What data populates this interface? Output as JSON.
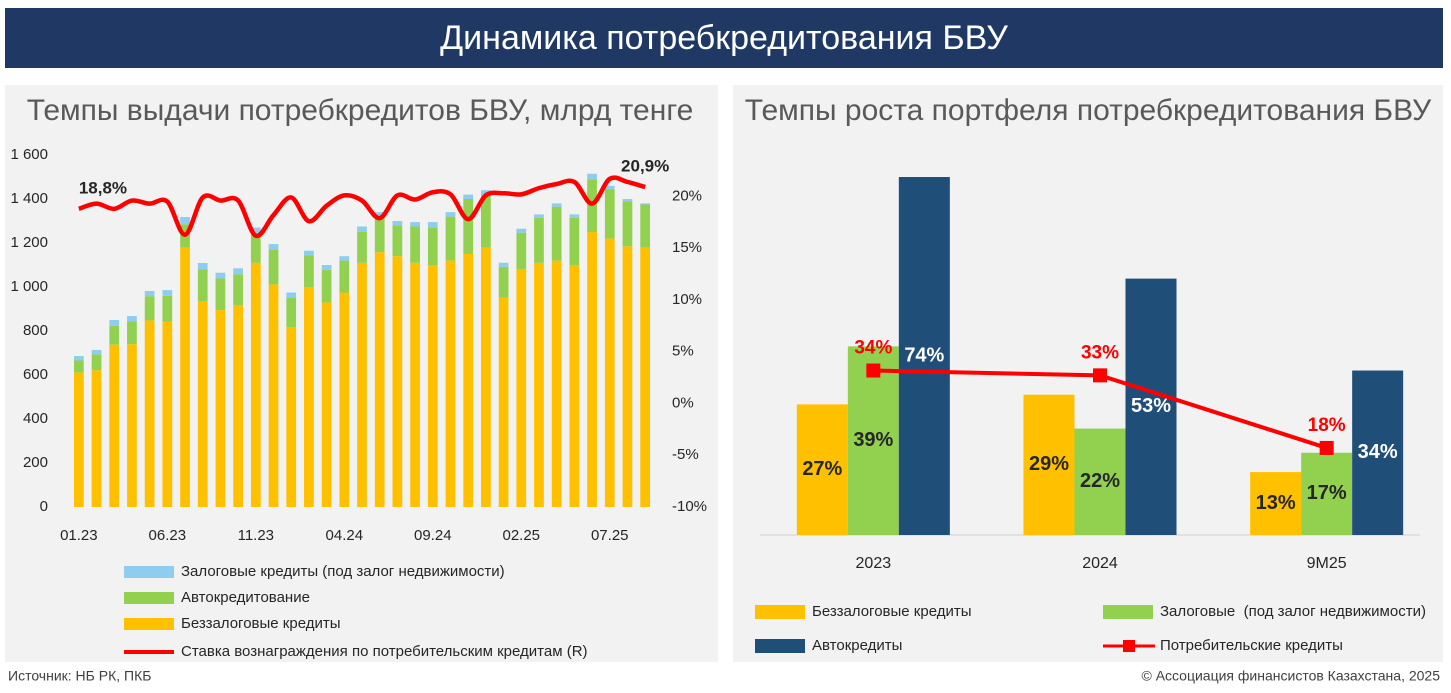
{
  "title": "Динамика потребкредитования БВУ",
  "source": "Источник: НБ РК, ПКБ",
  "copyright": "© Ассоциация финансистов Казахстана, 2025",
  "chart_data": [
    {
      "type": "bar",
      "stacked": true,
      "title": "Темпы выдачи потребкредитов БВУ, млрд тенге",
      "categories": [
        "01.23",
        null,
        null,
        null,
        null,
        "06.23",
        null,
        null,
        null,
        null,
        "11.23",
        null,
        null,
        null,
        null,
        "04.24",
        null,
        null,
        null,
        null,
        "09.24",
        null,
        null,
        null,
        null,
        "02.25",
        null,
        null,
        null,
        null,
        "07.25",
        null,
        null
      ],
      "series": [
        {
          "name": "Беззалоговые кредиты",
          "color": "#ffc000",
          "values": [
            612,
            622,
            738,
            740,
            848,
            842,
            1180,
            935,
            895,
            918,
            1110,
            1012,
            818,
            1000,
            930,
            975,
            1110,
            1158,
            1140,
            1110,
            1100,
            1120,
            1150,
            1180,
            952,
            1082,
            1110,
            1120,
            1100,
            1250,
            1220,
            1185,
            1180
          ]
        },
        {
          "name": "Автокредитование",
          "color": "#92d050",
          "values": [
            54,
            72,
            86,
            103,
            110,
            118,
            105,
            146,
            144,
            140,
            135,
            158,
            132,
            143,
            147,
            145,
            140,
            160,
            140,
            165,
            170,
            200,
            250,
            240,
            140,
            165,
            205,
            245,
            215,
            240,
            225,
            205,
            195
          ]
        },
        {
          "name": "Залоговые кредиты (под залог недвижимости)",
          "color": "#8ecdf0",
          "values": [
            20,
            20,
            26,
            25,
            24,
            26,
            33,
            28,
            26,
            27,
            25,
            25,
            25,
            22,
            23,
            20,
            25,
            22,
            20,
            20,
            25,
            20,
            20,
            20,
            18,
            18,
            15,
            15,
            15,
            25,
            15,
            10,
            5
          ]
        },
        {
          "name": "Ставка вознаграждения по потребительским кредитам (R)",
          "color": "#ff0000",
          "type": "line",
          "axis": "y2",
          "values": [
            18.8,
            19.3,
            18.8,
            19.6,
            19.3,
            19.5,
            16.3,
            19.9,
            19.6,
            19.6,
            16.2,
            18.2,
            19.9,
            17.6,
            19.1,
            20.1,
            19.6,
            17.9,
            20.1,
            19.7,
            20.4,
            20.2,
            17.8,
            20.1,
            20.3,
            20.2,
            20.8,
            21.2,
            21.4,
            19.3,
            21.7,
            21.4,
            20.9
          ],
          "value_labels": [
            "18,8%",
            null,
            null,
            null,
            null,
            null,
            null,
            null,
            null,
            null,
            null,
            null,
            null,
            null,
            null,
            null,
            null,
            null,
            null,
            null,
            null,
            null,
            null,
            null,
            null,
            null,
            null,
            null,
            null,
            null,
            null,
            null,
            "20,9%"
          ]
        }
      ],
      "ylim": [
        0,
        1600
      ],
      "yticks": [
        0,
        200,
        400,
        600,
        800,
        {
          "value": 1000,
          "label": "1 000"
        },
        {
          "value": 1200,
          "label": "1 200"
        },
        {
          "value": 1400,
          "label": "1 400"
        },
        {
          "value": 1600,
          "label": "1 600"
        }
      ],
      "y2lim": [
        -10,
        24
      ],
      "y2ticks": [
        {
          "value": -10,
          "label": "-10%"
        },
        {
          "value": -5,
          "label": "-5%"
        },
        {
          "value": 0,
          "label": "0%"
        },
        {
          "value": 5,
          "label": "5%"
        },
        {
          "value": 10,
          "label": "10%"
        },
        {
          "value": 15,
          "label": "15%"
        },
        {
          "value": 20,
          "label": "20%"
        }
      ],
      "grid": false
    },
    {
      "type": "bar",
      "title": "Темпы роста портфеля потребкредитования БВУ",
      "categories": [
        "2023",
        "2024",
        "9M25"
      ],
      "series": [
        {
          "name": "Беззалоговые кредиты",
          "color": "#ffc000",
          "values": [
            27,
            29,
            13
          ],
          "value_labels": [
            "27%",
            "29%",
            "13%"
          ]
        },
        {
          "name": "Залоговые  (под залог недвижимости)",
          "color": "#92d050",
          "values": [
            39,
            22,
            17
          ],
          "value_labels": [
            "39%",
            "22%",
            "17%"
          ]
        },
        {
          "name": "Автокредиты",
          "color": "#1f4e79",
          "values": [
            74,
            53,
            34
          ],
          "value_labels": [
            "74%",
            "53%",
            "34%"
          ]
        },
        {
          "name": "Потребительские кредиты",
          "color": "#ff0000",
          "type": "line",
          "values": [
            34,
            33,
            18
          ],
          "value_labels": [
            "34%",
            "33%",
            "18%"
          ]
        }
      ],
      "ylim": [
        0,
        80
      ],
      "grid": false
    }
  ]
}
